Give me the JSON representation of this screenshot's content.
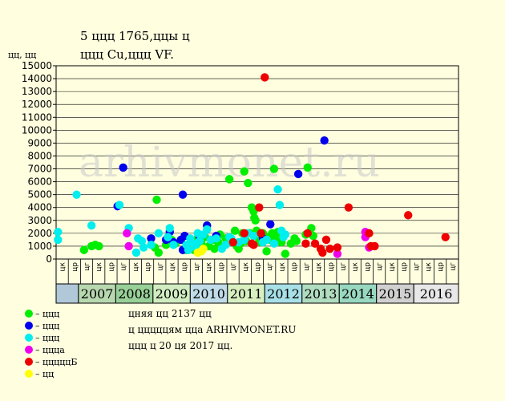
{
  "title_line1": "5 ццц 1765,ццы ц",
  "title_line2": "ццц Cu,ццц VF.",
  "watermark": "arhivmonet.ru",
  "info": [
    "цняя цц 2137 цц",
    "ц цццццям цца ARHIVMONET.RU",
    "ццц ц 20 ця 2017 цц."
  ],
  "legend": [
    {
      "label": "– ццц",
      "color": "#00ee00"
    },
    {
      "label": "– ццц",
      "color": "#0000ee"
    },
    {
      "label": "– ццц",
      "color": "#00eeee"
    },
    {
      "label": "– цццa",
      "color": "#ee00ee"
    },
    {
      "label": "– цццццБ",
      "color": "#ee0000"
    },
    {
      "label": "– цц",
      "color": "#ffff00"
    }
  ],
  "chart_data": {
    "type": "scatter",
    "ylabel": "цц, цц",
    "ylim": [
      0,
      15000
    ],
    "yticks": [
      0,
      1000,
      2000,
      3000,
      4000,
      5000,
      6000,
      7000,
      8000,
      9000,
      10000,
      11000,
      12000,
      13000,
      14000,
      15000
    ],
    "x_range": [
      2006,
      2016.8
    ],
    "x_sub_labels": [
      "цк",
      "цр",
      "цг",
      "цк",
      "цр",
      "цг",
      "цк",
      "цр",
      "цг",
      "цк",
      "цр",
      "цг",
      "цк",
      "цр",
      "цг",
      "цк",
      "цр",
      "цг",
      "цк",
      "цр",
      "цг",
      "цк",
      "цр",
      "цг",
      "цк",
      "цр",
      "цг",
      "цк",
      "цр",
      "цг",
      "цк",
      "цр",
      "цг"
    ],
    "year_bands": [
      {
        "year": "",
        "from": 2006.0,
        "to": 2006.6,
        "color": "#b0c8d8"
      },
      {
        "year": "2007",
        "from": 2006.6,
        "to": 2007.6,
        "color": "#b8d8b0"
      },
      {
        "year": "2008",
        "from": 2007.6,
        "to": 2008.6,
        "color": "#98d098"
      },
      {
        "year": "2009",
        "from": 2008.6,
        "to": 2009.6,
        "color": "#d0ecc0"
      },
      {
        "year": "2010",
        "from": 2009.6,
        "to": 2010.6,
        "color": "#c0dce8"
      },
      {
        "year": "2011",
        "from": 2010.6,
        "to": 2011.6,
        "color": "#d8f0c0"
      },
      {
        "year": "2012",
        "from": 2011.6,
        "to": 2012.6,
        "color": "#a8e0e8"
      },
      {
        "year": "2013",
        "from": 2012.6,
        "to": 2013.6,
        "color": "#b0dcc0"
      },
      {
        "year": "2014",
        "from": 2013.6,
        "to": 2014.6,
        "color": "#98d8c0"
      },
      {
        "year": "2015",
        "from": 2014.6,
        "to": 2015.6,
        "color": "#d0d0d0"
      },
      {
        "year": "2016",
        "from": 2015.6,
        "to": 2016.8,
        "color": "#e8e8e8"
      }
    ],
    "series": [
      {
        "color": "#00ee00",
        "points": [
          [
            2006.75,
            700
          ],
          [
            2006.95,
            1000
          ],
          [
            2007.05,
            1100
          ],
          [
            2007.15,
            1000
          ],
          [
            2008.65,
            900
          ],
          [
            2008.75,
            500
          ],
          [
            2008.7,
            4600
          ],
          [
            2008.95,
            1100
          ],
          [
            2009.1,
            1500
          ],
          [
            2009.2,
            1200
          ],
          [
            2009.5,
            700
          ],
          [
            2009.7,
            700
          ],
          [
            2009.8,
            1600
          ],
          [
            2009.9,
            1200
          ],
          [
            2010.0,
            1700
          ],
          [
            2010.05,
            2600
          ],
          [
            2010.1,
            1000
          ],
          [
            2010.2,
            1500
          ],
          [
            2010.25,
            800
          ],
          [
            2010.35,
            1300
          ],
          [
            2010.4,
            1900
          ],
          [
            2010.45,
            1000
          ],
          [
            2010.55,
            1600
          ],
          [
            2010.6,
            1300
          ],
          [
            2010.7,
            1500
          ],
          [
            2010.8,
            2200
          ],
          [
            2010.85,
            1000
          ],
          [
            2010.9,
            800
          ],
          [
            2010.95,
            1200
          ],
          [
            2011.0,
            2000
          ],
          [
            2011.05,
            6800
          ],
          [
            2011.1,
            1400
          ],
          [
            2011.15,
            5900
          ],
          [
            2011.2,
            2000
          ],
          [
            2011.25,
            4000
          ],
          [
            2011.3,
            3700
          ],
          [
            2011.32,
            3200
          ],
          [
            2011.35,
            3000
          ],
          [
            2011.38,
            2200
          ],
          [
            2011.4,
            1800
          ],
          [
            2011.45,
            1400
          ],
          [
            2011.55,
            2000
          ],
          [
            2011.65,
            600
          ],
          [
            2011.7,
            1700
          ],
          [
            2011.75,
            1500
          ],
          [
            2011.8,
            2000
          ],
          [
            2011.85,
            7000
          ],
          [
            2011.9,
            1800
          ],
          [
            2011.95,
            2100
          ],
          [
            2012.0,
            1400
          ],
          [
            2012.05,
            1300
          ],
          [
            2012.15,
            400
          ],
          [
            2012.3,
            1200
          ],
          [
            2012.4,
            1600
          ],
          [
            2012.45,
            1400
          ],
          [
            2012.75,
            7100
          ],
          [
            2012.85,
            2400
          ],
          [
            2012.7,
            1900
          ],
          [
            2012.9,
            1800
          ],
          [
            2010.65,
            6200
          ],
          [
            2011.5,
            1300
          ]
        ]
      },
      {
        "color": "#0000ee",
        "points": [
          [
            2007.65,
            4100
          ],
          [
            2007.8,
            7100
          ],
          [
            2008.55,
            1600
          ],
          [
            2008.95,
            1500
          ],
          [
            2009.05,
            2100
          ],
          [
            2009.15,
            1300
          ],
          [
            2009.4,
            5000
          ],
          [
            2009.45,
            1800
          ],
          [
            2009.4,
            700
          ],
          [
            2009.35,
            1500
          ],
          [
            2009.85,
            1700
          ],
          [
            2010.05,
            2600
          ],
          [
            2011.75,
            2700
          ],
          [
            2012.5,
            6600
          ],
          [
            2013.2,
            9200
          ],
          [
            2010.3,
            1800
          ],
          [
            2011.55,
            1600
          ]
        ]
      },
      {
        "color": "#00eeee",
        "points": [
          [
            2006.05,
            2100
          ],
          [
            2006.05,
            1500
          ],
          [
            2006.55,
            5000
          ],
          [
            2006.95,
            2600
          ],
          [
            2007.7,
            4200
          ],
          [
            2007.95,
            2400
          ],
          [
            2008.2,
            1600
          ],
          [
            2008.15,
            500
          ],
          [
            2008.3,
            1400
          ],
          [
            2008.35,
            900
          ],
          [
            2008.55,
            1100
          ],
          [
            2008.75,
            2000
          ],
          [
            2009.0,
            1700
          ],
          [
            2009.05,
            2400
          ],
          [
            2009.15,
            1100
          ],
          [
            2009.5,
            1100
          ],
          [
            2009.55,
            700
          ],
          [
            2009.6,
            1600
          ],
          [
            2009.7,
            1200
          ],
          [
            2009.75,
            900
          ],
          [
            2009.8,
            2000
          ],
          [
            2009.85,
            1400
          ],
          [
            2009.95,
            1900
          ],
          [
            2010.05,
            2300
          ],
          [
            2010.15,
            1500
          ],
          [
            2010.3,
            1600
          ],
          [
            2010.45,
            800
          ],
          [
            2010.55,
            1100
          ],
          [
            2010.65,
            1700
          ],
          [
            2010.7,
            1600
          ],
          [
            2010.9,
            1300
          ],
          [
            2011.05,
            1500
          ],
          [
            2011.15,
            2000
          ],
          [
            2011.3,
            1800
          ],
          [
            2011.55,
            1300
          ],
          [
            2011.65,
            1500
          ],
          [
            2011.85,
            1200
          ],
          [
            2011.95,
            5400
          ],
          [
            2012.0,
            4200
          ],
          [
            2012.05,
            2200
          ],
          [
            2012.1,
            1700
          ],
          [
            2012.15,
            1900
          ]
        ]
      },
      {
        "color": "#ee00ee",
        "points": [
          [
            2007.9,
            2000
          ],
          [
            2007.95,
            1000
          ],
          [
            2013.55,
            400
          ],
          [
            2014.3,
            2100
          ],
          [
            2014.3,
            1700
          ],
          [
            2014.4,
            900
          ]
        ]
      },
      {
        "color": "#ee0000",
        "points": [
          [
            2010.75,
            1300
          ],
          [
            2011.05,
            2000
          ],
          [
            2011.25,
            1200
          ],
          [
            2011.3,
            1100
          ],
          [
            2011.45,
            4000
          ],
          [
            2011.5,
            2000
          ],
          [
            2011.6,
            14100
          ],
          [
            2012.75,
            2000
          ],
          [
            2012.7,
            1200
          ],
          [
            2012.95,
            1200
          ],
          [
            2013.1,
            800
          ],
          [
            2013.15,
            500
          ],
          [
            2013.25,
            1500
          ],
          [
            2013.35,
            800
          ],
          [
            2013.55,
            900
          ],
          [
            2013.85,
            4000
          ],
          [
            2014.4,
            2000
          ],
          [
            2014.45,
            1000
          ],
          [
            2014.55,
            1000
          ],
          [
            2015.45,
            3400
          ],
          [
            2016.45,
            1700
          ]
        ]
      },
      {
        "color": "#ffff00",
        "points": [
          [
            2009.8,
            500
          ],
          [
            2009.9,
            600
          ],
          [
            2009.95,
            800
          ]
        ]
      }
    ]
  }
}
